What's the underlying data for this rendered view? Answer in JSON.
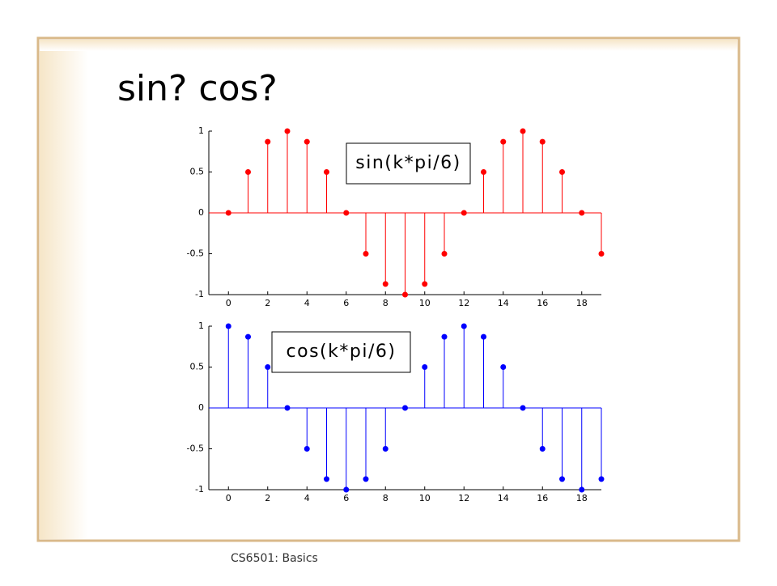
{
  "title": "sin? cos?",
  "footer": "CS6501: Basics",
  "chart_data": [
    {
      "type": "stem",
      "annotation": "sin(k*pi/6)",
      "color": "#ff0000",
      "x": [
        0,
        1,
        2,
        3,
        4,
        5,
        6,
        7,
        8,
        9,
        10,
        11,
        12,
        13,
        14,
        15,
        16,
        17,
        18,
        19
      ],
      "values": [
        0,
        0.5,
        0.87,
        1,
        0.87,
        0.5,
        0,
        -0.5,
        -0.87,
        -1,
        -0.87,
        -0.5,
        0,
        0.5,
        0.87,
        1,
        0.87,
        0.5,
        0,
        -0.5
      ],
      "xlim": [
        -1,
        19
      ],
      "ylim": [
        -1,
        1
      ],
      "xticks": [
        0,
        2,
        4,
        6,
        8,
        10,
        12,
        14,
        16,
        18
      ],
      "yticks": [
        -1,
        -0.5,
        0,
        0.5,
        1
      ]
    },
    {
      "type": "stem",
      "annotation": "cos(k*pi/6)",
      "color": "#0000ff",
      "x": [
        0,
        1,
        2,
        3,
        4,
        5,
        6,
        7,
        8,
        9,
        10,
        11,
        12,
        13,
        14,
        15,
        16,
        17,
        18,
        19
      ],
      "values": [
        1,
        0.87,
        0.5,
        0,
        -0.5,
        -0.87,
        -1,
        -0.87,
        -0.5,
        0,
        0.5,
        0.87,
        1,
        0.87,
        0.5,
        0,
        -0.5,
        -0.87,
        -1,
        -0.87
      ],
      "xlim": [
        -1,
        19
      ],
      "ylim": [
        -1,
        1
      ],
      "xticks": [
        0,
        2,
        4,
        6,
        8,
        10,
        12,
        14,
        16,
        18
      ],
      "yticks": [
        -1,
        -0.5,
        0,
        0.5,
        1
      ]
    }
  ]
}
